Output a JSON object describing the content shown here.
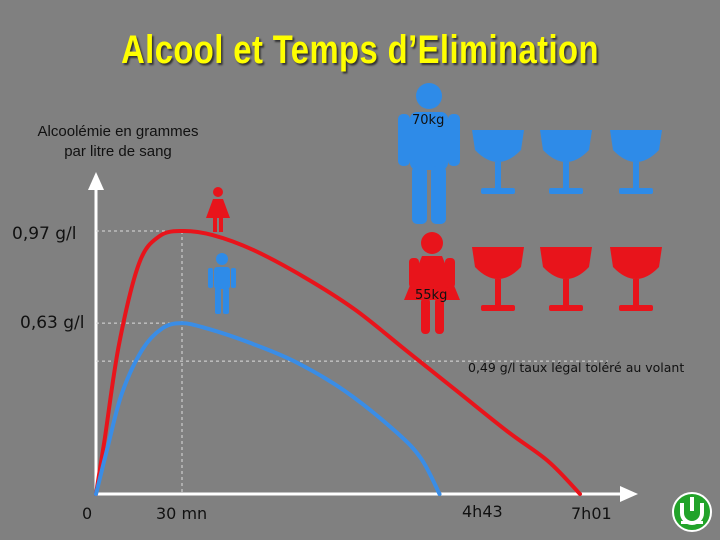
{
  "title": "Alcool et Temps d’Elimination",
  "chart_data": {
    "type": "line",
    "title": "Alcool et Temps d’Elimination",
    "ylabel_lines": [
      "Alcoolémie en grammes",
      "par litre de sang"
    ],
    "y_levels": [
      {
        "value": 0.97,
        "label": "0,97 g/l"
      },
      {
        "value": 0.63,
        "label": "0,63 g/l"
      }
    ],
    "legal_limit": {
      "value": 0.49,
      "label": "0,49 g/l taux légal toléré au volant"
    },
    "x_ticks": [
      {
        "minutes": 0,
        "label": "0"
      },
      {
        "minutes": 30,
        "label": "30 mn"
      },
      {
        "minutes": 283,
        "label": "4h43"
      },
      {
        "minutes": 421,
        "label": "7h01"
      }
    ],
    "series": [
      {
        "name": "55kg",
        "color": "#e8141b",
        "points": [
          [
            0,
            0
          ],
          [
            3,
            0.2
          ],
          [
            8,
            0.55
          ],
          [
            15,
            0.85
          ],
          [
            22,
            0.95
          ],
          [
            30,
            0.97
          ],
          [
            60,
            0.955
          ],
          [
            100,
            0.9
          ],
          [
            150,
            0.8
          ],
          [
            200,
            0.68
          ],
          [
            250,
            0.53
          ],
          [
            300,
            0.38
          ],
          [
            350,
            0.23
          ],
          [
            390,
            0.12
          ],
          [
            421,
            0
          ]
        ]
      },
      {
        "name": "70kg",
        "color": "#3a8de6",
        "points": [
          [
            0,
            0
          ],
          [
            4,
            0.17
          ],
          [
            9,
            0.37
          ],
          [
            16,
            0.53
          ],
          [
            23,
            0.61
          ],
          [
            30,
            0.63
          ],
          [
            55,
            0.61
          ],
          [
            95,
            0.56
          ],
          [
            140,
            0.49
          ],
          [
            190,
            0.38
          ],
          [
            240,
            0.23
          ],
          [
            265,
            0.13
          ],
          [
            283,
            0
          ]
        ]
      }
    ],
    "glass_counts": {
      "70kg": 3,
      "55kg": 3
    },
    "colors": {
      "men": "#2e8be8",
      "women": "#e8141b",
      "background": "#808080",
      "title": "#ffff00"
    }
  },
  "labels": {
    "men_weight": "70kg",
    "women_weight": "55kg"
  },
  "icons": [
    "man-icon",
    "woman-icon",
    "wine-glass-icon",
    "logo-badge-icon"
  ]
}
